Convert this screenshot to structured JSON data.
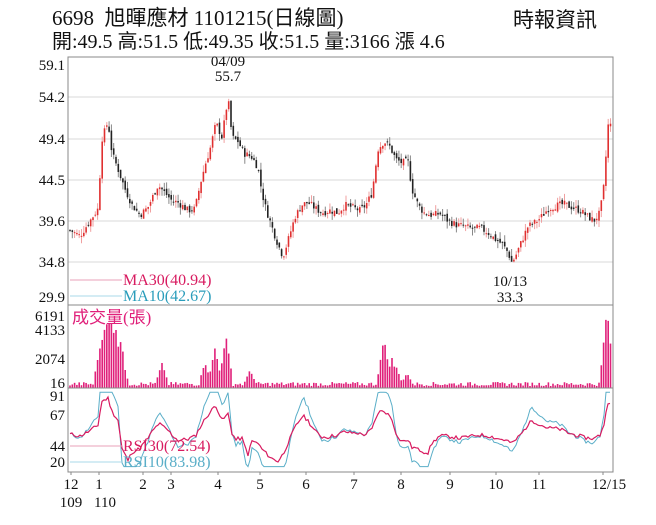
{
  "header": {
    "title": "6698  旭暉應材 1101215(日線圖)",
    "brand": "時報資訊",
    "quote": {
      "open_label": "開",
      "open": "49.5",
      "high_label": "高",
      "high": "51.5",
      "low_label": "低",
      "low": "49.35",
      "close_label": "收",
      "close": "51.5",
      "volume_label": "量",
      "volume": "3166",
      "change_label": "漲",
      "change": "4.6"
    },
    "quote_line": "開:49.5 高:51.5 低:49.35 收:51.5 量:3166 漲 4.6"
  },
  "colors": {
    "up_candle": "#e03030",
    "down_candle": "#222222",
    "ma30": "#d81b60",
    "ma10": "#2a9dbb",
    "volume": "#e0207a",
    "rsi30": "#d81b60",
    "rsi10": "#5aaec8",
    "grid": "#d8d8d8",
    "frame": "#888888"
  },
  "price_panel": {
    "yticks": [
      "59.1",
      "54.2",
      "49.4",
      "44.5",
      "39.6",
      "34.8",
      "29.9"
    ],
    "high_annotation": {
      "date": "04/09",
      "value": "55.7"
    },
    "low_annotation": {
      "date": "10/13",
      "value": "33.3"
    },
    "legend": [
      {
        "label": "MA30(40.94)"
      },
      {
        "label": "MA10(42.67)"
      }
    ]
  },
  "volume_panel": {
    "title": "成交量(張)",
    "yticks": [
      "6191",
      "4133",
      "2074",
      "16"
    ]
  },
  "rsi_panel": {
    "yticks": [
      "91",
      "67",
      "44",
      "20"
    ],
    "legend": [
      {
        "label": "RSI30(72.54)"
      },
      {
        "label": "RSI10(83.98)"
      }
    ]
  },
  "x_axis": {
    "ticks": [
      "12",
      "1",
      "2",
      "3",
      "4",
      "5",
      "6",
      "7",
      "8",
      "9",
      "10",
      "11",
      "12/15"
    ],
    "year_labels": [
      "109",
      "110"
    ]
  },
  "chart_data": {
    "type": "candlestick",
    "title": "6698 旭暉應材 1101215(日線圖)",
    "x": [
      "2020-12",
      "2021-01",
      "2021-02",
      "2021-03",
      "2021-04",
      "2021-05",
      "2021-06",
      "2021-07",
      "2021-08",
      "2021-09",
      "2021-10",
      "2021-11",
      "2021-12-15"
    ],
    "price_axis": {
      "ylim": [
        29.9,
        59.1
      ],
      "ticks": [
        59.1,
        54.2,
        49.4,
        44.5,
        39.6,
        34.8,
        29.9
      ]
    },
    "close_approx_monthly": [
      38.5,
      50.0,
      41.0,
      43.0,
      53.0,
      36.0,
      41.0,
      48.0,
      40.0,
      37.5,
      35.0,
      41.0,
      51.5
    ],
    "annotations": [
      {
        "date": "04/09",
        "value": 55.7,
        "type": "high"
      },
      {
        "date": "10/13",
        "value": 33.3,
        "type": "low"
      }
    ],
    "series": [
      {
        "name": "MA30",
        "last": 40.94
      },
      {
        "name": "MA10",
        "last": 42.67
      },
      {
        "name": "RSI30",
        "last": 72.54
      },
      {
        "name": "RSI10",
        "last": 83.98
      }
    ],
    "volume_axis": {
      "ticks": [
        6191,
        4133,
        2074,
        16
      ],
      "unit": "張"
    },
    "rsi_axis": {
      "ticks": [
        91,
        67,
        44,
        20
      ]
    },
    "last_bar": {
      "open": 49.5,
      "high": 51.5,
      "low": 49.35,
      "close": 51.5,
      "volume": 3166,
      "change": 4.6
    }
  }
}
